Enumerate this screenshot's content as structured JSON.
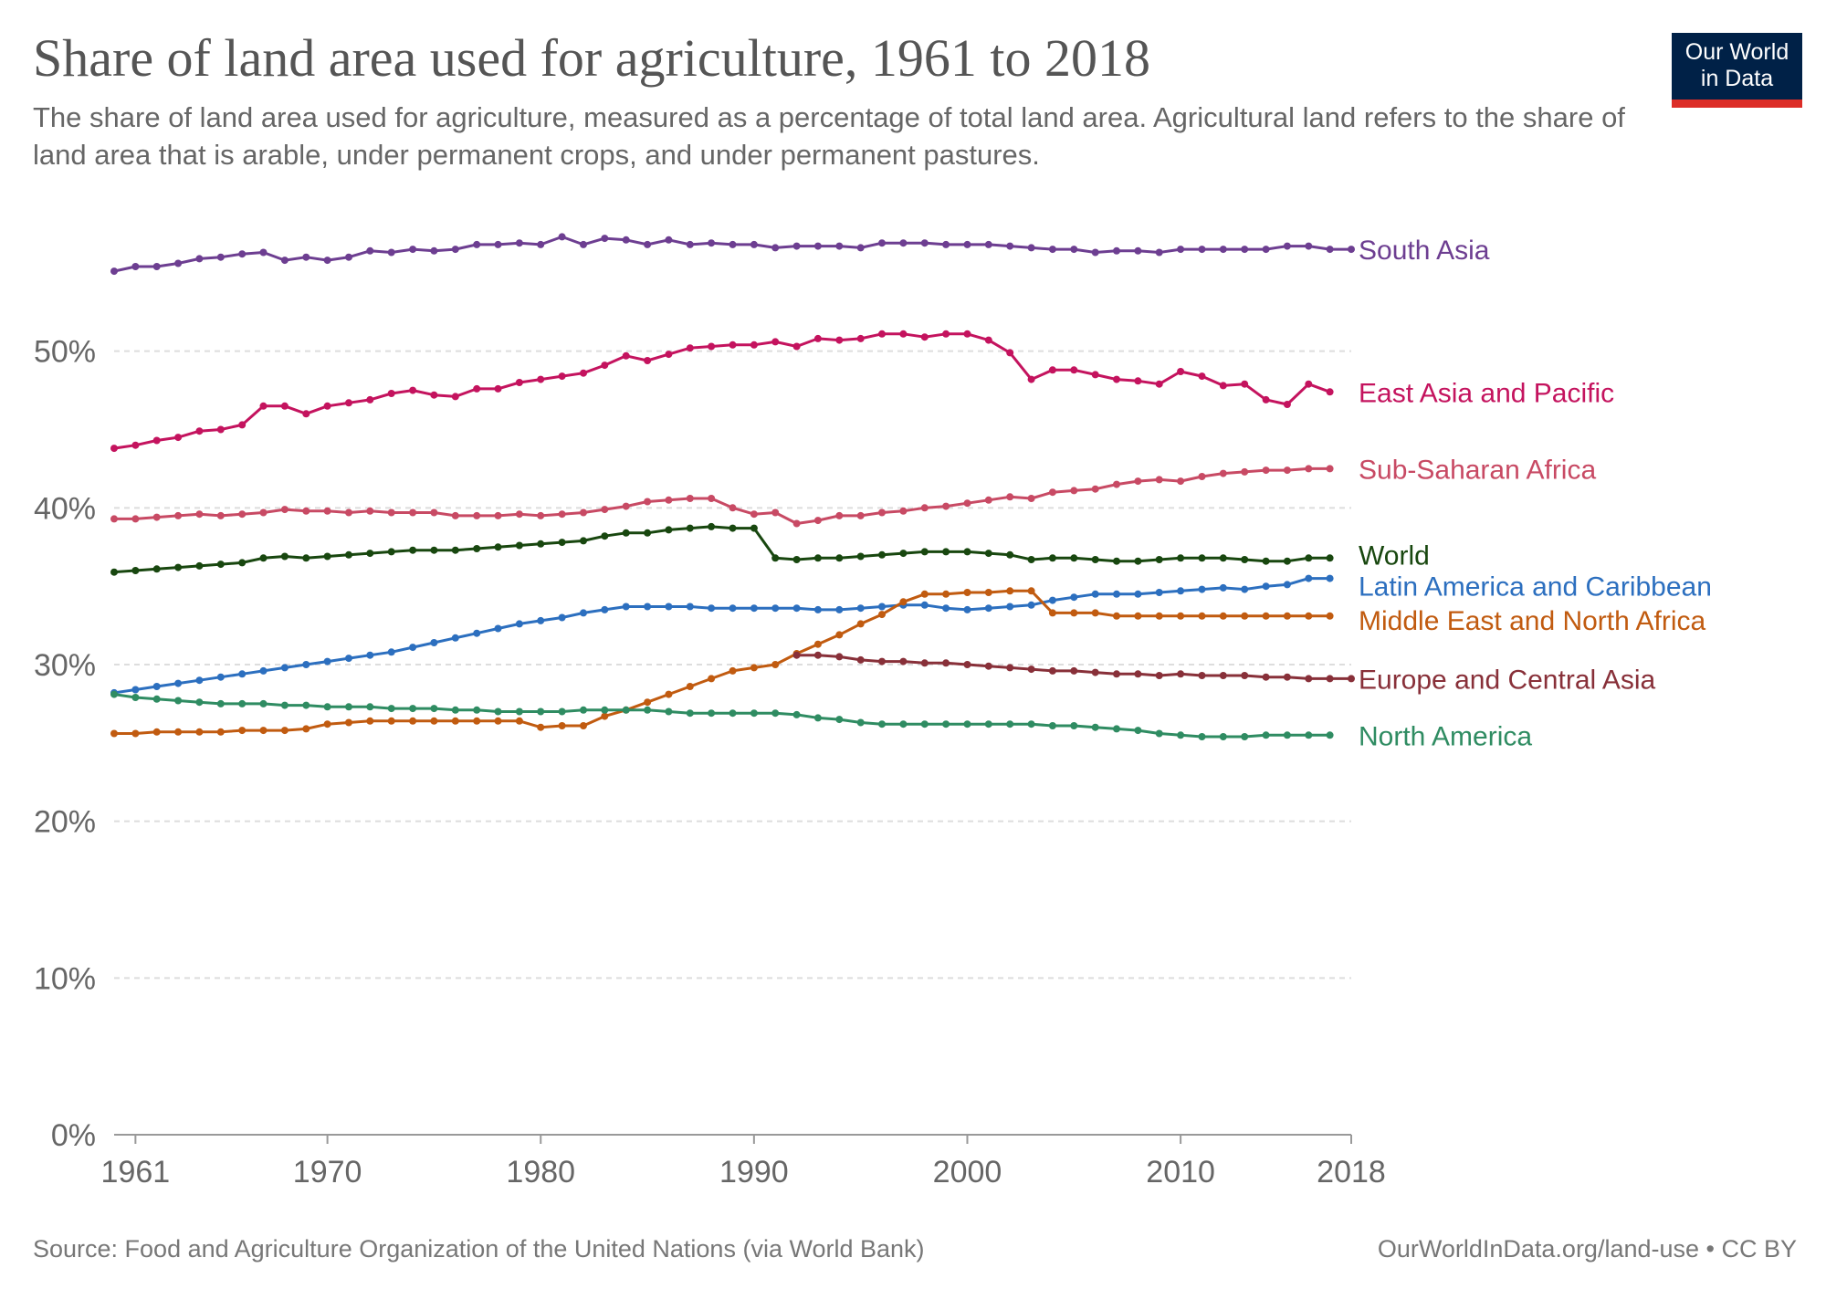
{
  "header": {
    "title": "Share of land area used for agriculture, 1961 to 2018",
    "subtitle": "The share of land area used for agriculture, measured as a percentage of total land area. Agricultural land refers to the share of land area that is arable, under permanent crops, and under permanent pastures."
  },
  "logo": {
    "line1": "Our World",
    "line2": "in Data",
    "bg_color": "#002147",
    "accent_color": "#dc2d27"
  },
  "footer": {
    "source": "Source: Food and Agriculture Organization of the United Nations (via World Bank)",
    "credit": "OurWorldInData.org/land-use • CC BY"
  },
  "chart_data": {
    "type": "line",
    "title": "Share of land area used for agriculture, 1961 to 2018",
    "xlabel": "",
    "ylabel": "",
    "xlim": [
      1960,
      2018
    ],
    "ylim": [
      0,
      60
    ],
    "grid": "horizontal-dashed",
    "markers": true,
    "x_ticks": [
      1961,
      1970,
      1980,
      1990,
      2000,
      2010,
      2018
    ],
    "y_ticks": [
      0,
      10,
      20,
      30,
      40,
      50
    ],
    "y_tick_labels": [
      "0%",
      "10%",
      "20%",
      "30%",
      "40%",
      "50%"
    ],
    "legend": "labels at line ends (right)",
    "series": [
      {
        "name": "South Asia",
        "color": "#6d3e91",
        "start": 1960,
        "values": [
          55.1,
          55.4,
          55.4,
          55.6,
          55.9,
          56.0,
          56.2,
          56.3,
          55.8,
          56.0,
          55.8,
          56.0,
          56.4,
          56.3,
          56.5,
          56.4,
          56.5,
          56.8,
          56.8,
          56.9,
          56.8,
          57.3,
          56.8,
          57.2,
          57.1,
          56.8,
          57.1,
          56.8,
          56.9,
          56.8,
          56.8,
          56.6,
          56.7,
          56.7,
          56.7,
          56.6,
          56.9,
          56.9,
          56.9,
          56.8,
          56.8,
          56.8,
          56.7,
          56.6,
          56.5,
          56.5,
          56.3,
          56.4,
          56.4,
          56.3,
          56.5,
          56.5,
          56.5,
          56.5,
          56.5,
          56.7,
          56.7,
          56.5,
          56.5
        ]
      },
      {
        "name": "East Asia and Pacific",
        "color": "#c4135e",
        "start": 1960,
        "values": [
          43.8,
          44.0,
          44.3,
          44.5,
          44.9,
          45.0,
          45.3,
          46.5,
          46.5,
          46.0,
          46.5,
          46.7,
          46.9,
          47.3,
          47.5,
          47.2,
          47.1,
          47.6,
          47.6,
          48.0,
          48.2,
          48.4,
          48.6,
          49.1,
          49.7,
          49.4,
          49.8,
          50.2,
          50.3,
          50.4,
          50.4,
          50.6,
          50.3,
          50.8,
          50.7,
          50.8,
          51.1,
          51.1,
          50.9,
          51.1,
          51.1,
          50.7,
          49.9,
          48.2,
          48.8,
          48.8,
          48.5,
          48.2,
          48.1,
          47.9,
          48.7,
          48.4,
          47.8,
          47.9,
          46.9,
          46.6,
          47.9,
          47.4
        ]
      },
      {
        "name": "Sub-Saharan Africa",
        "color": "#c84a64",
        "start": 1960,
        "values": [
          39.3,
          39.3,
          39.4,
          39.5,
          39.6,
          39.5,
          39.6,
          39.7,
          39.9,
          39.8,
          39.8,
          39.7,
          39.8,
          39.7,
          39.7,
          39.7,
          39.5,
          39.5,
          39.5,
          39.6,
          39.5,
          39.6,
          39.7,
          39.9,
          40.1,
          40.4,
          40.5,
          40.6,
          40.6,
          40.0,
          39.6,
          39.7,
          39.0,
          39.2,
          39.5,
          39.5,
          39.7,
          39.8,
          40.0,
          40.1,
          40.3,
          40.5,
          40.7,
          40.6,
          41.0,
          41.1,
          41.2,
          41.5,
          41.7,
          41.8,
          41.7,
          42.0,
          42.2,
          42.3,
          42.4,
          42.4,
          42.5,
          42.5
        ]
      },
      {
        "name": "World",
        "color": "#18470f",
        "start": 1960,
        "values": [
          35.9,
          36.0,
          36.1,
          36.2,
          36.3,
          36.4,
          36.5,
          36.8,
          36.9,
          36.8,
          36.9,
          37.0,
          37.1,
          37.2,
          37.3,
          37.3,
          37.3,
          37.4,
          37.5,
          37.6,
          37.7,
          37.8,
          37.9,
          38.2,
          38.4,
          38.4,
          38.6,
          38.7,
          38.8,
          38.7,
          38.7,
          36.8,
          36.7,
          36.8,
          36.8,
          36.9,
          37.0,
          37.1,
          37.2,
          37.2,
          37.2,
          37.1,
          37.0,
          36.7,
          36.8,
          36.8,
          36.7,
          36.6,
          36.6,
          36.7,
          36.8,
          36.8,
          36.8,
          36.7,
          36.6,
          36.6,
          36.8,
          36.8
        ]
      },
      {
        "name": "Latin America and Caribbean",
        "color": "#2c6fbf",
        "start": 1960,
        "values": [
          28.2,
          28.4,
          28.6,
          28.8,
          29.0,
          29.2,
          29.4,
          29.6,
          29.8,
          30.0,
          30.2,
          30.4,
          30.6,
          30.8,
          31.1,
          31.4,
          31.7,
          32.0,
          32.3,
          32.6,
          32.8,
          33.0,
          33.3,
          33.5,
          33.7,
          33.7,
          33.7,
          33.7,
          33.6,
          33.6,
          33.6,
          33.6,
          33.6,
          33.5,
          33.5,
          33.6,
          33.7,
          33.8,
          33.8,
          33.6,
          33.5,
          33.6,
          33.7,
          33.8,
          34.1,
          34.3,
          34.5,
          34.5,
          34.5,
          34.6,
          34.7,
          34.8,
          34.9,
          34.8,
          35.0,
          35.1,
          35.5,
          35.5
        ]
      },
      {
        "name": "Middle East and North Africa",
        "color": "#c15b10",
        "start": 1960,
        "values": [
          25.6,
          25.6,
          25.7,
          25.7,
          25.7,
          25.7,
          25.8,
          25.8,
          25.8,
          25.9,
          26.2,
          26.3,
          26.4,
          26.4,
          26.4,
          26.4,
          26.4,
          26.4,
          26.4,
          26.4,
          26.0,
          26.1,
          26.1,
          26.7,
          27.1,
          27.6,
          28.1,
          28.6,
          29.1,
          29.6,
          29.8,
          30.0,
          30.7,
          31.3,
          31.9,
          32.6,
          33.2,
          34.0,
          34.5,
          34.5,
          34.6,
          34.6,
          34.7,
          34.7,
          33.3,
          33.3,
          33.3,
          33.1,
          33.1,
          33.1,
          33.1,
          33.1,
          33.1,
          33.1,
          33.1,
          33.1,
          33.1,
          33.1
        ]
      },
      {
        "name": "Europe and Central Asia",
        "color": "#883039",
        "start": 1992,
        "values": [
          30.6,
          30.6,
          30.5,
          30.3,
          30.2,
          30.2,
          30.1,
          30.1,
          30.0,
          29.9,
          29.8,
          29.7,
          29.6,
          29.6,
          29.5,
          29.4,
          29.4,
          29.3,
          29.4,
          29.3,
          29.3,
          29.3,
          29.2,
          29.2,
          29.1,
          29.1,
          29.1
        ]
      },
      {
        "name": "North America",
        "color": "#2f8c62",
        "start": 1960,
        "values": [
          28.1,
          27.9,
          27.8,
          27.7,
          27.6,
          27.5,
          27.5,
          27.5,
          27.4,
          27.4,
          27.3,
          27.3,
          27.3,
          27.2,
          27.2,
          27.2,
          27.1,
          27.1,
          27.0,
          27.0,
          27.0,
          27.0,
          27.1,
          27.1,
          27.1,
          27.1,
          27.0,
          26.9,
          26.9,
          26.9,
          26.9,
          26.9,
          26.8,
          26.6,
          26.5,
          26.3,
          26.2,
          26.2,
          26.2,
          26.2,
          26.2,
          26.2,
          26.2,
          26.2,
          26.1,
          26.1,
          26.0,
          25.9,
          25.8,
          25.6,
          25.5,
          25.4,
          25.4,
          25.4,
          25.5,
          25.5,
          25.5,
          25.5
        ]
      }
    ]
  }
}
